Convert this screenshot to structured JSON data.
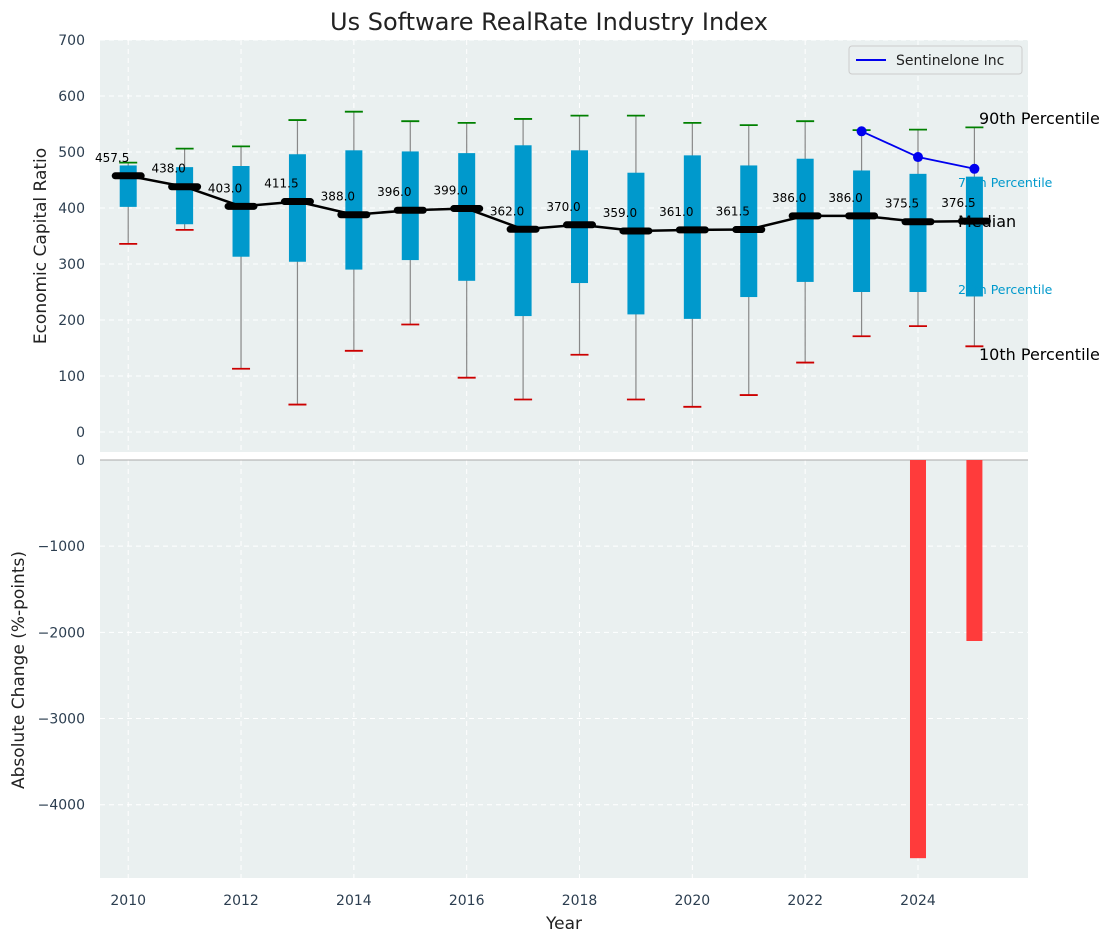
{
  "chart_data": [
    {
      "type": "box",
      "title": "Us Software RealRate Industry Index",
      "ylabel": "Economic Capital Ratio",
      "ylim": [
        0,
        700
      ],
      "yticks": [
        0,
        100,
        200,
        300,
        400,
        500,
        600,
        700
      ],
      "grid": true,
      "legend_position": "top-right",
      "years": [
        2010,
        2011,
        2012,
        2013,
        2014,
        2015,
        2016,
        2017,
        2018,
        2019,
        2020,
        2021,
        2022,
        2023,
        2024,
        2025
      ],
      "p10": [
        336,
        361,
        113,
        49,
        145,
        192,
        97,
        58,
        138,
        58,
        45,
        66,
        124,
        171,
        189,
        153
      ],
      "p25": [
        402,
        371,
        313,
        304,
        290,
        307,
        270,
        207,
        266,
        210,
        202,
        241,
        268,
        250,
        250,
        242
      ],
      "median": [
        457.5,
        438.0,
        403.0,
        411.5,
        388.0,
        396.0,
        399.0,
        362.0,
        370.0,
        359.0,
        361.0,
        361.5,
        386.0,
        386.0,
        375.5,
        376.5
      ],
      "median_labels": [
        "457.5",
        "438.0",
        "403.0",
        "411.5",
        "388.0",
        "396.0",
        "399.0",
        "362.0",
        "370.0",
        "359.0",
        "361.0",
        "361.5",
        "386.0",
        "386.0",
        "375.5",
        "376.5"
      ],
      "p75": [
        476,
        473,
        475,
        496,
        503,
        501,
        498,
        512,
        503,
        463,
        494,
        476,
        488,
        467,
        461,
        456
      ],
      "p90": [
        481,
        506,
        510,
        557,
        572,
        555,
        552,
        559,
        565,
        565,
        552,
        548,
        555,
        539,
        540,
        544
      ],
      "whisker_top": [
        481,
        506,
        510,
        557,
        572,
        555,
        552,
        559,
        565,
        565,
        552,
        548,
        555,
        539,
        540,
        544
      ],
      "series": [
        {
          "name": "Sentinelone Inc",
          "x": [
            2023,
            2024,
            2025
          ],
          "values": [
            537,
            491,
            470
          ]
        }
      ],
      "annotations": {
        "p90": "90th Percentile",
        "p75": "75th Percentile",
        "median": "Median",
        "p25": "25th Percentile",
        "p10": "10th Percentile"
      },
      "colors": {
        "box": "#0099cc",
        "median": "#000000",
        "p90_cap": "#008000",
        "p10_cap": "#cc0000",
        "whisker": "#888888",
        "company": "#0000ee",
        "plot_bg": "#eaf0f0",
        "grid": "#ffffff"
      }
    },
    {
      "type": "bar",
      "xlabel": "Year",
      "ylabel": "Absolute Change (%-points)",
      "ylim": [
        -4850,
        0
      ],
      "yticks": [
        0,
        -1000,
        -2000,
        -3000,
        -4000
      ],
      "ytick_labels": [
        "0",
        "−1000",
        "−2000",
        "−3000",
        "−4000"
      ],
      "xticks": [
        2010,
        2012,
        2014,
        2016,
        2018,
        2020,
        2022,
        2024
      ],
      "xlim": [
        2009.5,
        2025.95
      ],
      "x": [
        2024,
        2025
      ],
      "values": [
        -4620,
        -2100
      ],
      "color": "#ff3b3b"
    }
  ]
}
